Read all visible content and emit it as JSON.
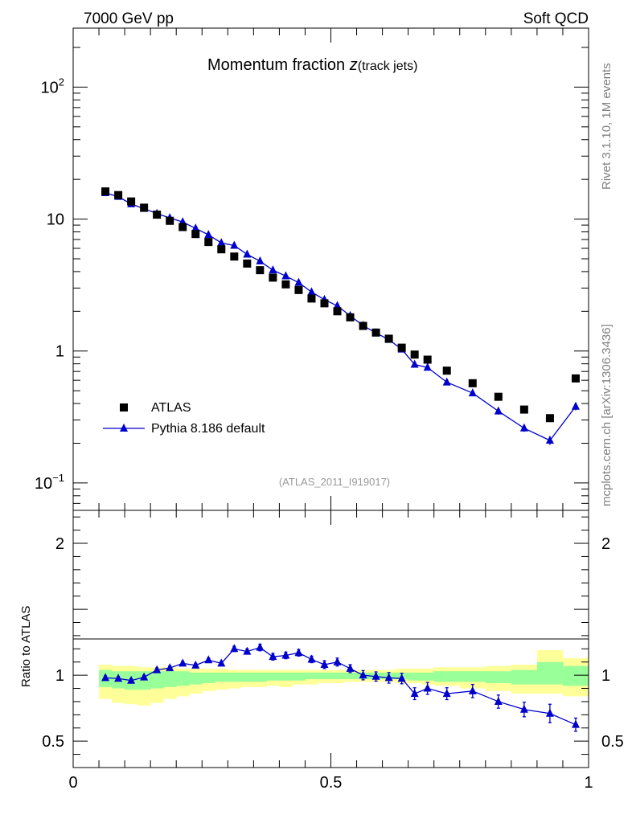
{
  "header": {
    "left_label": "7000 GeV pp",
    "right_label": "Soft QCD"
  },
  "side_labels": {
    "rivet": "Rivet 3.1.10,  1M events",
    "source": "mcplots.cern.ch [arXiv:1306.3436]"
  },
  "chart_data": [
    {
      "type": "scatter",
      "title_main": "Momentum fraction ",
      "title_var": "z",
      "title_sub": "(track jets)",
      "watermark": "(ATLAS_2011_I919017)",
      "xlim": [
        0,
        1
      ],
      "ylim": [
        0.062,
        280
      ],
      "yscale": "log",
      "yticks": [
        {
          "value": 0.1,
          "base": "10",
          "exp": "−1"
        },
        {
          "value": 1,
          "base": "1",
          "exp": ""
        },
        {
          "value": 10,
          "base": "10",
          "exp": ""
        },
        {
          "value": 100,
          "base": "10",
          "exp": "2"
        }
      ],
      "legend": {
        "placement": "bottom-left",
        "entries": [
          "ATLAS",
          "Pythia 8.186 default"
        ]
      },
      "series": [
        {
          "name": "ATLAS",
          "marker": "square",
          "color": "#000000",
          "x": [
            0.0625,
            0.0875,
            0.1125,
            0.1375,
            0.1625,
            0.1875,
            0.2125,
            0.2375,
            0.2625,
            0.2875,
            0.3125,
            0.3375,
            0.3625,
            0.3875,
            0.4125,
            0.4375,
            0.4625,
            0.4875,
            0.5125,
            0.5375,
            0.5625,
            0.5875,
            0.6125,
            0.6375,
            0.6625,
            0.6875,
            0.725,
            0.775,
            0.825,
            0.875,
            0.925,
            0.975
          ],
          "y": [
            16.2,
            15.2,
            13.6,
            12.2,
            10.8,
            9.7,
            8.7,
            7.7,
            6.7,
            5.9,
            5.2,
            4.6,
            4.1,
            3.6,
            3.2,
            2.9,
            2.5,
            2.3,
            2.0,
            1.8,
            1.55,
            1.38,
            1.24,
            1.06,
            0.94,
            0.86,
            0.71,
            0.57,
            0.45,
            0.36,
            0.31,
            0.62
          ]
        },
        {
          "name": "Pythia 8.186 default",
          "marker": "triangle",
          "color": "#0000cc",
          "x": [
            0.0625,
            0.0875,
            0.1125,
            0.1375,
            0.1625,
            0.1875,
            0.2125,
            0.2375,
            0.2625,
            0.2875,
            0.3125,
            0.3375,
            0.3625,
            0.3875,
            0.4125,
            0.4375,
            0.4625,
            0.4875,
            0.5125,
            0.5375,
            0.5625,
            0.5875,
            0.6125,
            0.6375,
            0.6625,
            0.6875,
            0.725,
            0.775,
            0.825,
            0.875,
            0.925,
            0.975
          ],
          "y": [
            15.8,
            14.8,
            13.0,
            12.0,
            11.0,
            10.2,
            9.5,
            8.5,
            7.6,
            6.6,
            6.3,
            5.4,
            4.8,
            4.1,
            3.7,
            3.3,
            2.8,
            2.45,
            2.2,
            1.85,
            1.56,
            1.37,
            1.22,
            1.03,
            0.79,
            0.75,
            0.58,
            0.48,
            0.35,
            0.26,
            0.21,
            0.38
          ],
          "yerr": [
            0.2,
            0.2,
            0.2,
            0.15,
            0.15,
            0.15,
            0.15,
            0.12,
            0.1,
            0.1,
            0.1,
            0.1,
            0.08,
            0.08,
            0.07,
            0.07,
            0.06,
            0.05,
            0.05,
            0.05,
            0.04,
            0.04,
            0.04,
            0.04,
            0.04,
            0.03,
            0.02,
            0.02,
            0.02,
            0.016,
            0.016,
            0.025
          ]
        }
      ]
    },
    {
      "type": "line",
      "ylabel": "Ratio to ATLAS",
      "xlim": [
        0,
        1
      ],
      "ylim": [
        0.3,
        2.25
      ],
      "xticks": [
        {
          "value": 0,
          "label": "0"
        },
        {
          "value": 0.5,
          "label": "0.5"
        },
        {
          "value": 1,
          "label": "1"
        }
      ],
      "yticks": [
        {
          "value": 0.5,
          "label": "0.5"
        },
        {
          "value": 1,
          "label": "1"
        },
        {
          "value": 2,
          "label": "2"
        }
      ],
      "bands": {
        "edges": [
          0.05,
          0.075,
          0.1,
          0.125,
          0.15,
          0.175,
          0.2,
          0.225,
          0.25,
          0.275,
          0.3,
          0.325,
          0.35,
          0.375,
          0.4,
          0.425,
          0.45,
          0.475,
          0.5,
          0.525,
          0.55,
          0.575,
          0.6,
          0.625,
          0.65,
          0.675,
          0.7,
          0.75,
          0.8,
          0.85,
          0.9,
          0.95,
          1.0
        ],
        "yellow_low": [
          0.82,
          0.79,
          0.78,
          0.77,
          0.79,
          0.82,
          0.84,
          0.86,
          0.88,
          0.89,
          0.9,
          0.91,
          0.91,
          0.92,
          0.91,
          0.93,
          0.93,
          0.94,
          0.94,
          0.95,
          0.95,
          0.95,
          0.95,
          0.94,
          0.94,
          0.93,
          0.92,
          0.9,
          0.88,
          0.86,
          0.86,
          0.84
        ],
        "yellow_high": [
          1.08,
          1.07,
          1.07,
          1.06,
          1.06,
          1.06,
          1.05,
          1.05,
          1.05,
          1.05,
          1.04,
          1.04,
          1.04,
          1.04,
          1.04,
          1.04,
          1.04,
          1.04,
          1.04,
          1.04,
          1.04,
          1.04,
          1.04,
          1.05,
          1.05,
          1.05,
          1.06,
          1.06,
          1.07,
          1.08,
          1.19,
          1.13
        ],
        "green_low": [
          0.91,
          0.9,
          0.89,
          0.89,
          0.9,
          0.91,
          0.92,
          0.93,
          0.94,
          0.95,
          0.95,
          0.95,
          0.95,
          0.96,
          0.96,
          0.96,
          0.97,
          0.97,
          0.97,
          0.97,
          0.97,
          0.97,
          0.97,
          0.97,
          0.96,
          0.96,
          0.95,
          0.95,
          0.94,
          0.93,
          0.93,
          0.92
        ],
        "green_high": [
          1.04,
          1.03,
          1.03,
          1.03,
          1.03,
          1.03,
          1.03,
          1.02,
          1.02,
          1.02,
          1.02,
          1.02,
          1.02,
          1.02,
          1.02,
          1.02,
          1.02,
          1.02,
          1.02,
          1.02,
          1.02,
          1.02,
          1.02,
          1.02,
          1.02,
          1.02,
          1.03,
          1.03,
          1.03,
          1.04,
          1.1,
          1.07
        ],
        "green_color": "#99ff99",
        "yellow_color": "#ffff99"
      },
      "series": [
        {
          "name": "Pythia 8.186 default",
          "marker": "triangle",
          "color": "#0000cc",
          "x": [
            0.0625,
            0.0875,
            0.1125,
            0.1375,
            0.1625,
            0.1875,
            0.2125,
            0.2375,
            0.2625,
            0.2875,
            0.3125,
            0.3375,
            0.3625,
            0.3875,
            0.4125,
            0.4375,
            0.4625,
            0.4875,
            0.5125,
            0.5375,
            0.5625,
            0.5875,
            0.6125,
            0.6375,
            0.6625,
            0.6875,
            0.725,
            0.775,
            0.825,
            0.875,
            0.925,
            0.975
          ],
          "y": [
            0.98,
            0.975,
            0.96,
            0.985,
            1.04,
            1.055,
            1.09,
            1.075,
            1.115,
            1.09,
            1.2,
            1.18,
            1.21,
            1.14,
            1.15,
            1.17,
            1.12,
            1.08,
            1.1,
            1.05,
            1.0,
            0.99,
            0.98,
            0.975,
            0.86,
            0.9,
            0.86,
            0.88,
            0.8,
            0.74,
            0.71,
            0.625
          ],
          "yerr": [
            0.015,
            0.015,
            0.015,
            0.015,
            0.015,
            0.015,
            0.015,
            0.015,
            0.015,
            0.015,
            0.02,
            0.02,
            0.025,
            0.025,
            0.025,
            0.025,
            0.025,
            0.03,
            0.03,
            0.03,
            0.035,
            0.035,
            0.04,
            0.04,
            0.045,
            0.045,
            0.045,
            0.05,
            0.05,
            0.055,
            0.07,
            0.05
          ]
        }
      ]
    }
  ]
}
